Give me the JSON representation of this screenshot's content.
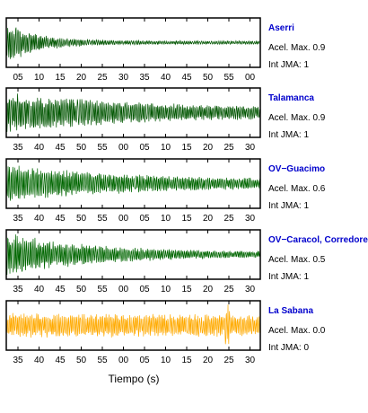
{
  "chart_data": {
    "type": "line",
    "xlabel": "Tiempo (s)",
    "panels": [
      {
        "station": "Aserri",
        "accel": "Acel. Max. 0.9",
        "jma": "Int JMA: 1",
        "color": "#005500",
        "ticks": [
          "05",
          "10",
          "15",
          "20",
          "25",
          "30",
          "35",
          "40",
          "45",
          "50",
          "55",
          "00"
        ],
        "envelope": {
          "onset": 0.0,
          "peak": 0.95,
          "decay": 0.12,
          "floor": 0.08
        }
      },
      {
        "station": "Talamanca",
        "accel": "Acel. Max. 0.9",
        "jma": "Int JMA: 1",
        "color": "#005500",
        "ticks": [
          "35",
          "40",
          "45",
          "50",
          "55",
          "00",
          "05",
          "10",
          "15",
          "20",
          "25",
          "30"
        ],
        "envelope": {
          "onset": 0.0,
          "peak": 0.9,
          "decay": 0.5,
          "floor": 0.2
        }
      },
      {
        "station": "OV−Guacimo",
        "accel": "Acel. Max. 0.6",
        "jma": "Int JMA: 1",
        "color": "#006600",
        "ticks": [
          "35",
          "40",
          "45",
          "50",
          "55",
          "00",
          "05",
          "10",
          "15",
          "20",
          "25",
          "30"
        ],
        "envelope": {
          "onset": 0.0,
          "peak": 0.85,
          "decay": 0.45,
          "floor": 0.18
        }
      },
      {
        "station": "OV−Caracol, Corredore",
        "accel": "Acel. Max. 0.5",
        "jma": "Int JMA: 1",
        "color": "#006600",
        "ticks": [
          "35",
          "40",
          "45",
          "50",
          "55",
          "00",
          "05",
          "10",
          "15",
          "20",
          "25",
          "30"
        ],
        "envelope": {
          "onset": 0.0,
          "peak": 0.95,
          "decay": 0.35,
          "floor": 0.1
        }
      },
      {
        "station": "La Sabana",
        "accel": "Acel. Max. 0.0",
        "jma": "Int JMA: 0",
        "color": "#ffaa00",
        "ticks": [
          "35",
          "40",
          "45",
          "50",
          "55",
          "00",
          "05",
          "10",
          "15",
          "20",
          "25",
          "30"
        ],
        "envelope": {
          "onset": 0.0,
          "peak": 0.55,
          "decay": 2.0,
          "floor": 0.35
        }
      }
    ]
  }
}
